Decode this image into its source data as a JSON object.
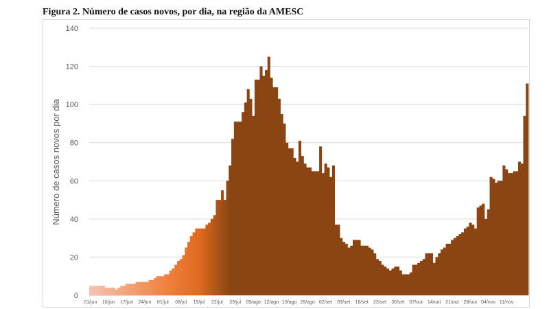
{
  "title": "Figura 2. Número de casos novos, por dia, na região da AMESC",
  "chart_data": {
    "type": "bar",
    "title": "Figura 2. Número de casos novos, por dia, na região da AMESC",
    "xlabel": "",
    "ylabel": "Número de casos novos por dia",
    "ylim": [
      0,
      140
    ],
    "yticks": [
      0,
      20,
      40,
      60,
      80,
      100,
      120,
      140
    ],
    "grid": true,
    "x_tick_labels": [
      "01/jun",
      "10/jun",
      "17/jun",
      "24/jun",
      "01/jul",
      "08/jul",
      "15/jul",
      "22/jul",
      "29/jul",
      "05/ago",
      "12/ago",
      "19/ago",
      "26/ago",
      "02/set",
      "09/set",
      "16/set",
      "23/set",
      "30/set",
      "07/out",
      "14/out",
      "21/out",
      "28/out",
      "04/nov",
      "11/nov"
    ],
    "x_start": "2020-06-01",
    "values": [
      5,
      5,
      5,
      5,
      5,
      5,
      4,
      4,
      4,
      4,
      3,
      4,
      5,
      5,
      6,
      6,
      6,
      6,
      7,
      7,
      7,
      7,
      7,
      8,
      8,
      9,
      10,
      10,
      10,
      11,
      11,
      13,
      14,
      16,
      18,
      19,
      21,
      25,
      28,
      31,
      33,
      35,
      35,
      35,
      35,
      37,
      38,
      40,
      42,
      50,
      50,
      55,
      50,
      60,
      68,
      82,
      91,
      91,
      91,
      96,
      101,
      108,
      103,
      94,
      113,
      113,
      120,
      115,
      118,
      125,
      114,
      109,
      109,
      103,
      95,
      90,
      80,
      77,
      77,
      72,
      70,
      81,
      73,
      69,
      67,
      67,
      65,
      65,
      65,
      78,
      64,
      69,
      67,
      62,
      68,
      37,
      37,
      30,
      28,
      27,
      25,
      26,
      29,
      29,
      29,
      26,
      26,
      26,
      25,
      24,
      22,
      19,
      18,
      16,
      15,
      14,
      13,
      14,
      15,
      15,
      13,
      11,
      11,
      11,
      12,
      16,
      16,
      17,
      18,
      19,
      22,
      22,
      22,
      17,
      20,
      22,
      24,
      25,
      27,
      27,
      29,
      30,
      31,
      32,
      33,
      35,
      36,
      38,
      37,
      35,
      46,
      47,
      48,
      40,
      45,
      62,
      61,
      59,
      60,
      60,
      68,
      66,
      64,
      64,
      65,
      65,
      70,
      69,
      94,
      111
    ]
  },
  "colors": {
    "early": "#f6c3b2",
    "mid": "#ed7d31",
    "main": "#8b4513",
    "grid": "#d9d9d9",
    "axis": "#bfbfbf"
  }
}
